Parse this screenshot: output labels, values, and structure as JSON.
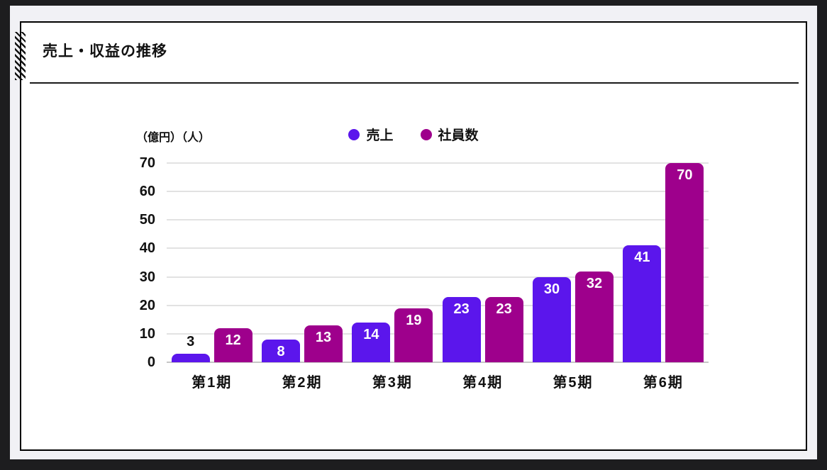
{
  "header": {
    "title": "売上・収益の推移"
  },
  "chart_data": {
    "type": "bar",
    "title": "売上・収益の推移",
    "unit_label": "（億円）（人）",
    "categories": [
      "第1期",
      "第2期",
      "第3期",
      "第4期",
      "第5期",
      "第6期"
    ],
    "series": [
      {
        "name": "売上",
        "color": "#5b16ec",
        "values": [
          3,
          8,
          14,
          23,
          30,
          41
        ]
      },
      {
        "name": "社員数",
        "color": "#9e008c",
        "values": [
          12,
          13,
          19,
          23,
          32,
          70
        ]
      }
    ],
    "xlabel": "",
    "ylabel": "（億円）（人）",
    "ylim": [
      0,
      70
    ],
    "yticks": [
      0,
      10,
      20,
      30,
      40,
      50,
      60,
      70
    ],
    "grid": true,
    "legend_position": "top-center",
    "bar_label_color_inside": "#ffffff",
    "bar_label_color_outside": "#111111"
  }
}
